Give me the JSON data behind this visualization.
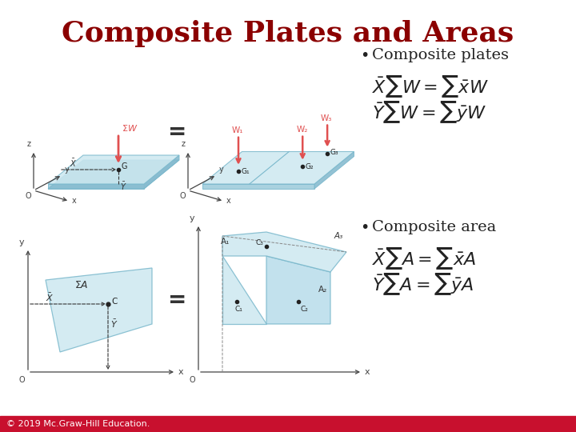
{
  "title": "Composite Plates and Areas",
  "title_color": "#8B0000",
  "title_fontsize": 26,
  "bullet1": "Composite plates",
  "bullet2": "Composite area",
  "eq1a": "$\\bar{X}\\sum W = \\sum \\bar{x}W$",
  "eq1b": "$\\bar{Y}\\sum W = \\sum \\bar{y}W$",
  "eq2a": "$\\bar{X}\\sum A = \\sum \\bar{x}A$",
  "eq2b": "$\\bar{Y}\\sum A = \\sum \\bar{y}A$",
  "eq_fontsize": 16,
  "bullet_fontsize": 14,
  "footer_text": "© 2019 Mc.Graw-Hill Education.",
  "footer_bg": "#C8102E",
  "footer_text_color": "#ffffff",
  "footer_fontsize": 8,
  "bg_color": "#ffffff",
  "plate_color_light": "#cde8f0",
  "plate_color_mid": "#b8dcea",
  "plate_edge_color": "#7ab8cc",
  "plate_alpha": 0.85,
  "arrow_color": "#e05050",
  "label_color": "#e05050",
  "axis_color": "#444444",
  "dark_label_color": "#333333",
  "eq_sign_fontsize": 20
}
